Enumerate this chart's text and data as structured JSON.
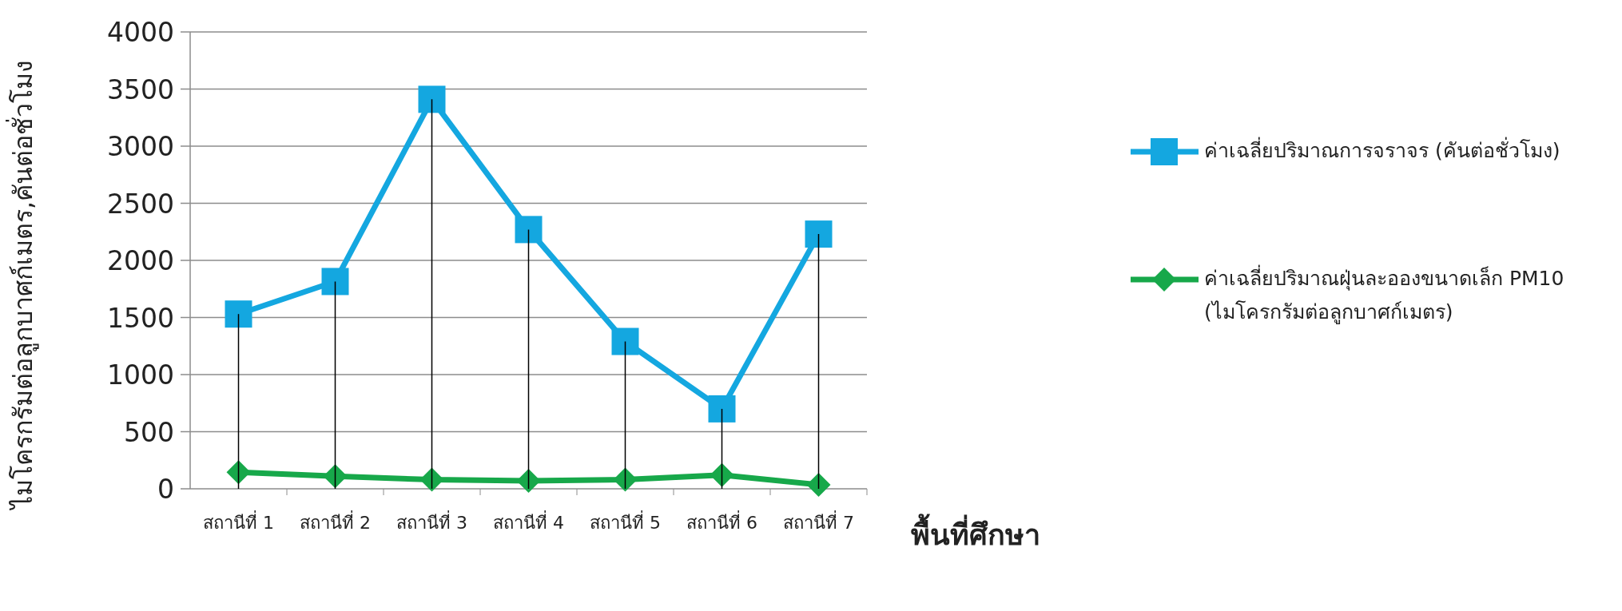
{
  "chart_data": {
    "type": "line",
    "xlabel": "พื้นที่ศึกษา",
    "ylabel": "ไมโครกรัมต่อลูกบาศก์เมตร,คันต่อชั่วโมง",
    "categories": [
      "สถานีที่ 1",
      "สถานีที่ 2",
      "สถานีที่ 3",
      "สถานีที่ 4",
      "สถานีที่ 5",
      "สถานีที่ 6",
      "สถานีที่ 7"
    ],
    "series": [
      {
        "name": "ค่าเฉลี่ยปริมาณการจราจร (คันต่อชั่วโมง)",
        "color": "#14a7e0",
        "marker": "square",
        "values": [
          1530,
          1815,
          3410,
          2270,
          1290,
          700,
          2230
        ],
        "errors": [
          [
            1530,
            0
          ],
          [
            1815,
            0
          ],
          [
            3410,
            0
          ],
          [
            2270,
            0
          ],
          [
            1290,
            0
          ],
          [
            700,
            0
          ],
          [
            2230,
            0
          ]
        ]
      },
      {
        "name": "ค่าเฉลี่ยปริมาณฝุ่นละอองขนาดเล็ก PM10 (ไมโครกรัมต่อลูกบาศก์เมตร)",
        "color": "#17a84a",
        "marker": "diamond",
        "values": [
          145,
          110,
          80,
          70,
          80,
          120,
          35
        ]
      }
    ],
    "ylim": [
      0,
      4000
    ],
    "yticks": [
      0,
      500,
      1000,
      1500,
      2000,
      2500,
      3000,
      3500,
      4000
    ],
    "grid": "y",
    "legend": "right"
  }
}
